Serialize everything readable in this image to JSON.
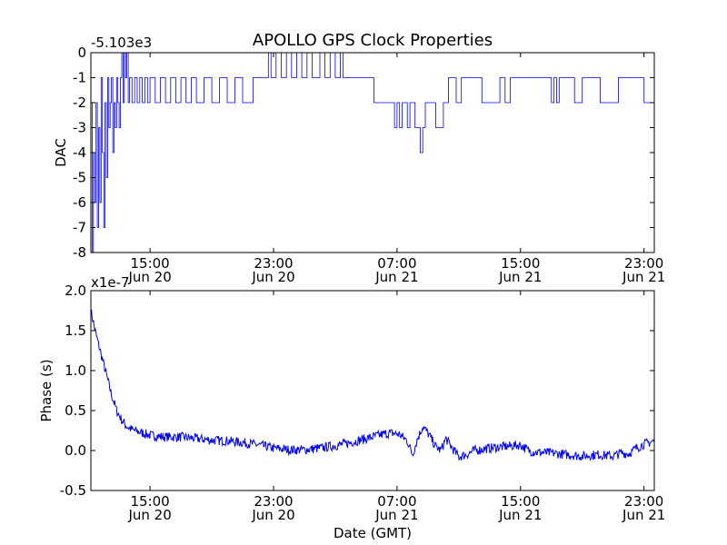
{
  "figure": {
    "title": "APOLLO GPS Clock Properties",
    "background": "#ffffff",
    "line_color": "#0000ff"
  },
  "chart_data": [
    {
      "type": "line",
      "name": "top-panel",
      "ylabel": "DAC",
      "xlabel": "",
      "offset_text": "-5.103e3",
      "ylim": [
        -8,
        0
      ],
      "yticks": [
        "0",
        "-1",
        "-2",
        "-3",
        "-4",
        "-5",
        "-6",
        "-7",
        "-8"
      ],
      "xlim": [
        "2008-06-20 11:10",
        "2008-06-21 23:40"
      ],
      "xticks": [
        {
          "time": "2008-06-20 15:00",
          "line1": "15:00",
          "line2": "Jun 20"
        },
        {
          "time": "2008-06-20 23:00",
          "line1": "23:00",
          "line2": "Jun 20"
        },
        {
          "time": "2008-06-21 07:00",
          "line1": "07:00",
          "line2": "Jun 21"
        },
        {
          "time": "2008-06-21 15:00",
          "line1": "15:00",
          "line2": "Jun 21"
        },
        {
          "time": "2008-06-21 23:00",
          "line1": "23:00",
          "line2": "Jun 21"
        }
      ],
      "series": [
        {
          "style": "step",
          "x": [
            "2008-06-20 11:10",
            "2008-06-20 11:15",
            "2008-06-20 11:20",
            "2008-06-20 11:25",
            "2008-06-20 11:30",
            "2008-06-20 11:35",
            "2008-06-20 11:40",
            "2008-06-20 11:45",
            "2008-06-20 11:50",
            "2008-06-20 11:55",
            "2008-06-20 12:00",
            "2008-06-20 12:05",
            "2008-06-20 12:10",
            "2008-06-20 12:15",
            "2008-06-20 12:20",
            "2008-06-20 12:25",
            "2008-06-20 12:30",
            "2008-06-20 12:35",
            "2008-06-20 12:40",
            "2008-06-20 12:45",
            "2008-06-20 12:50",
            "2008-06-20 12:55",
            "2008-06-20 13:00",
            "2008-06-20 13:05",
            "2008-06-20 13:10",
            "2008-06-20 13:15",
            "2008-06-20 13:20",
            "2008-06-20 13:25",
            "2008-06-20 13:30",
            "2008-06-20 13:35",
            "2008-06-20 13:40",
            "2008-06-20 13:50",
            "2008-06-20 14:00",
            "2008-06-20 14:10",
            "2008-06-20 14:20",
            "2008-06-20 14:30",
            "2008-06-20 14:40",
            "2008-06-20 14:50",
            "2008-06-20 15:00",
            "2008-06-20 15:20",
            "2008-06-20 15:40",
            "2008-06-20 16:00",
            "2008-06-20 16:20",
            "2008-06-20 16:40",
            "2008-06-20 17:00",
            "2008-06-20 17:20",
            "2008-06-20 17:40",
            "2008-06-20 18:00",
            "2008-06-20 18:30",
            "2008-06-20 19:00",
            "2008-06-20 19:30",
            "2008-06-20 20:00",
            "2008-06-20 20:30",
            "2008-06-20 21:00",
            "2008-06-20 21:40",
            "2008-06-20 22:20",
            "2008-06-20 22:40",
            "2008-06-20 22:50",
            "2008-06-20 23:10",
            "2008-06-20 23:30",
            "2008-06-20 23:50",
            "2008-06-21 00:10",
            "2008-06-21 00:30",
            "2008-06-21 00:50",
            "2008-06-21 01:10",
            "2008-06-21 01:30",
            "2008-06-21 02:00",
            "2008-06-21 02:20",
            "2008-06-21 02:40",
            "2008-06-21 03:00",
            "2008-06-21 03:20",
            "2008-06-21 03:30",
            "2008-06-21 05:30",
            "2008-06-21 06:40",
            "2008-06-21 06:50",
            "2008-06-21 07:00",
            "2008-06-21 07:10",
            "2008-06-21 07:20",
            "2008-06-21 07:40",
            "2008-06-21 07:50",
            "2008-06-21 08:10",
            "2008-06-21 08:30",
            "2008-06-21 08:40",
            "2008-06-21 08:50",
            "2008-06-21 09:00",
            "2008-06-21 09:30",
            "2008-06-21 10:00",
            "2008-06-21 10:20",
            "2008-06-21 10:50",
            "2008-06-21 11:10",
            "2008-06-21 11:40",
            "2008-06-21 12:30",
            "2008-06-21 13:40",
            "2008-06-21 14:00",
            "2008-06-21 14:20",
            "2008-06-21 15:30",
            "2008-06-21 17:00",
            "2008-06-21 17:10",
            "2008-06-21 17:20",
            "2008-06-21 17:30",
            "2008-06-21 18:00",
            "2008-06-21 18:30",
            "2008-06-21 19:00",
            "2008-06-21 20:10",
            "2008-06-21 21:20",
            "2008-06-21 22:30",
            "2008-06-21 23:00",
            "2008-06-21 23:40"
          ],
          "y": [
            -2,
            -8,
            -4,
            -6,
            -2,
            -7,
            -3,
            -6,
            -1,
            -4,
            -7,
            -2,
            -5,
            -1,
            -3,
            -2,
            -1,
            -4,
            -2,
            -3,
            -1,
            -2,
            -3,
            -1,
            0,
            -2,
            0,
            -1,
            0,
            -2,
            -1,
            -2,
            -1,
            -2,
            -1,
            -2,
            -1,
            -2,
            -1,
            -2,
            -1,
            -2,
            -1,
            -2,
            -1,
            -2,
            -1,
            -2,
            -1,
            -2,
            -1,
            -2,
            -1,
            -2,
            -1,
            -1,
            0,
            -1,
            0,
            -1,
            0,
            -1,
            0,
            -1,
            0,
            -1,
            0,
            -1,
            0,
            -1,
            0,
            -1,
            -2,
            -2,
            -3,
            -2,
            -3,
            -2,
            -3,
            -2,
            -3,
            -4,
            -3,
            -2,
            -2,
            -3,
            -2,
            -1,
            -2,
            -1,
            -1,
            -2,
            -1,
            -2,
            -1,
            -1,
            -2,
            -1,
            -2,
            -1,
            -1,
            -2,
            -1,
            -2,
            -1,
            -1,
            -2,
            -2
          ]
        }
      ]
    },
    {
      "type": "line",
      "name": "bottom-panel",
      "ylabel": "Phase (s)",
      "xlabel": "Date (GMT)",
      "offset_text": "x1e-7",
      "ylim": [
        -0.5,
        2.0
      ],
      "yticks": [
        "2.0",
        "1.5",
        "1.0",
        "0.5",
        "0.0",
        "-0.5"
      ],
      "xlim": [
        "2008-06-20 11:10",
        "2008-06-21 23:40"
      ],
      "xticks": [
        {
          "time": "2008-06-20 15:00",
          "line1": "15:00",
          "line2": "Jun 20"
        },
        {
          "time": "2008-06-20 23:00",
          "line1": "23:00",
          "line2": "Jun 20"
        },
        {
          "time": "2008-06-21 07:00",
          "line1": "07:00",
          "line2": "Jun 21"
        },
        {
          "time": "2008-06-21 15:00",
          "line1": "15:00",
          "line2": "Jun 21"
        },
        {
          "time": "2008-06-21 23:00",
          "line1": "23:00",
          "line2": "Jun 21"
        }
      ],
      "series": [
        {
          "style": "line",
          "x": [
            "2008-06-20 11:10",
            "2008-06-20 11:30",
            "2008-06-20 11:50",
            "2008-06-20 12:10",
            "2008-06-20 12:30",
            "2008-06-20 12:50",
            "2008-06-20 13:10",
            "2008-06-20 13:30",
            "2008-06-20 13:50",
            "2008-06-20 14:10",
            "2008-06-20 14:30",
            "2008-06-20 15:00",
            "2008-06-20 16:00",
            "2008-06-20 17:00",
            "2008-06-20 18:00",
            "2008-06-20 19:00",
            "2008-06-20 20:00",
            "2008-06-20 21:00",
            "2008-06-20 22:00",
            "2008-06-20 23:00",
            "2008-06-21 00:00",
            "2008-06-21 01:00",
            "2008-06-21 02:00",
            "2008-06-21 03:00",
            "2008-06-21 04:00",
            "2008-06-21 05:00",
            "2008-06-21 06:00",
            "2008-06-21 06:40",
            "2008-06-21 07:10",
            "2008-06-21 07:40",
            "2008-06-21 08:00",
            "2008-06-21 08:20",
            "2008-06-21 08:40",
            "2008-06-21 09:00",
            "2008-06-21 09:30",
            "2008-06-21 09:50",
            "2008-06-21 10:10",
            "2008-06-21 10:30",
            "2008-06-21 11:00",
            "2008-06-21 11:30",
            "2008-06-21 12:00",
            "2008-06-21 13:00",
            "2008-06-21 14:00",
            "2008-06-21 15:00",
            "2008-06-21 15:30",
            "2008-06-21 16:00",
            "2008-06-21 17:00",
            "2008-06-21 18:00",
            "2008-06-21 19:00",
            "2008-06-21 20:00",
            "2008-06-21 21:00",
            "2008-06-21 21:30",
            "2008-06-21 22:00",
            "2008-06-21 22:30",
            "2008-06-21 23:00",
            "2008-06-21 23:40"
          ],
          "y": [
            1.75,
            1.45,
            1.2,
            0.95,
            0.7,
            0.5,
            0.38,
            0.3,
            0.26,
            0.24,
            0.22,
            0.19,
            0.17,
            0.17,
            0.15,
            0.13,
            0.12,
            0.1,
            0.07,
            0.03,
            0.01,
            0.01,
            0.03,
            0.06,
            0.1,
            0.15,
            0.2,
            0.22,
            0.2,
            0.12,
            -0.05,
            0.15,
            0.3,
            0.22,
            0.05,
            0.0,
            0.15,
            0.05,
            -0.08,
            -0.05,
            0.0,
            0.03,
            0.05,
            0.07,
            0.0,
            -0.02,
            -0.03,
            -0.05,
            -0.07,
            -0.05,
            -0.07,
            -0.03,
            -0.04,
            0.03,
            0.08,
            0.12
          ]
        }
      ]
    }
  ]
}
